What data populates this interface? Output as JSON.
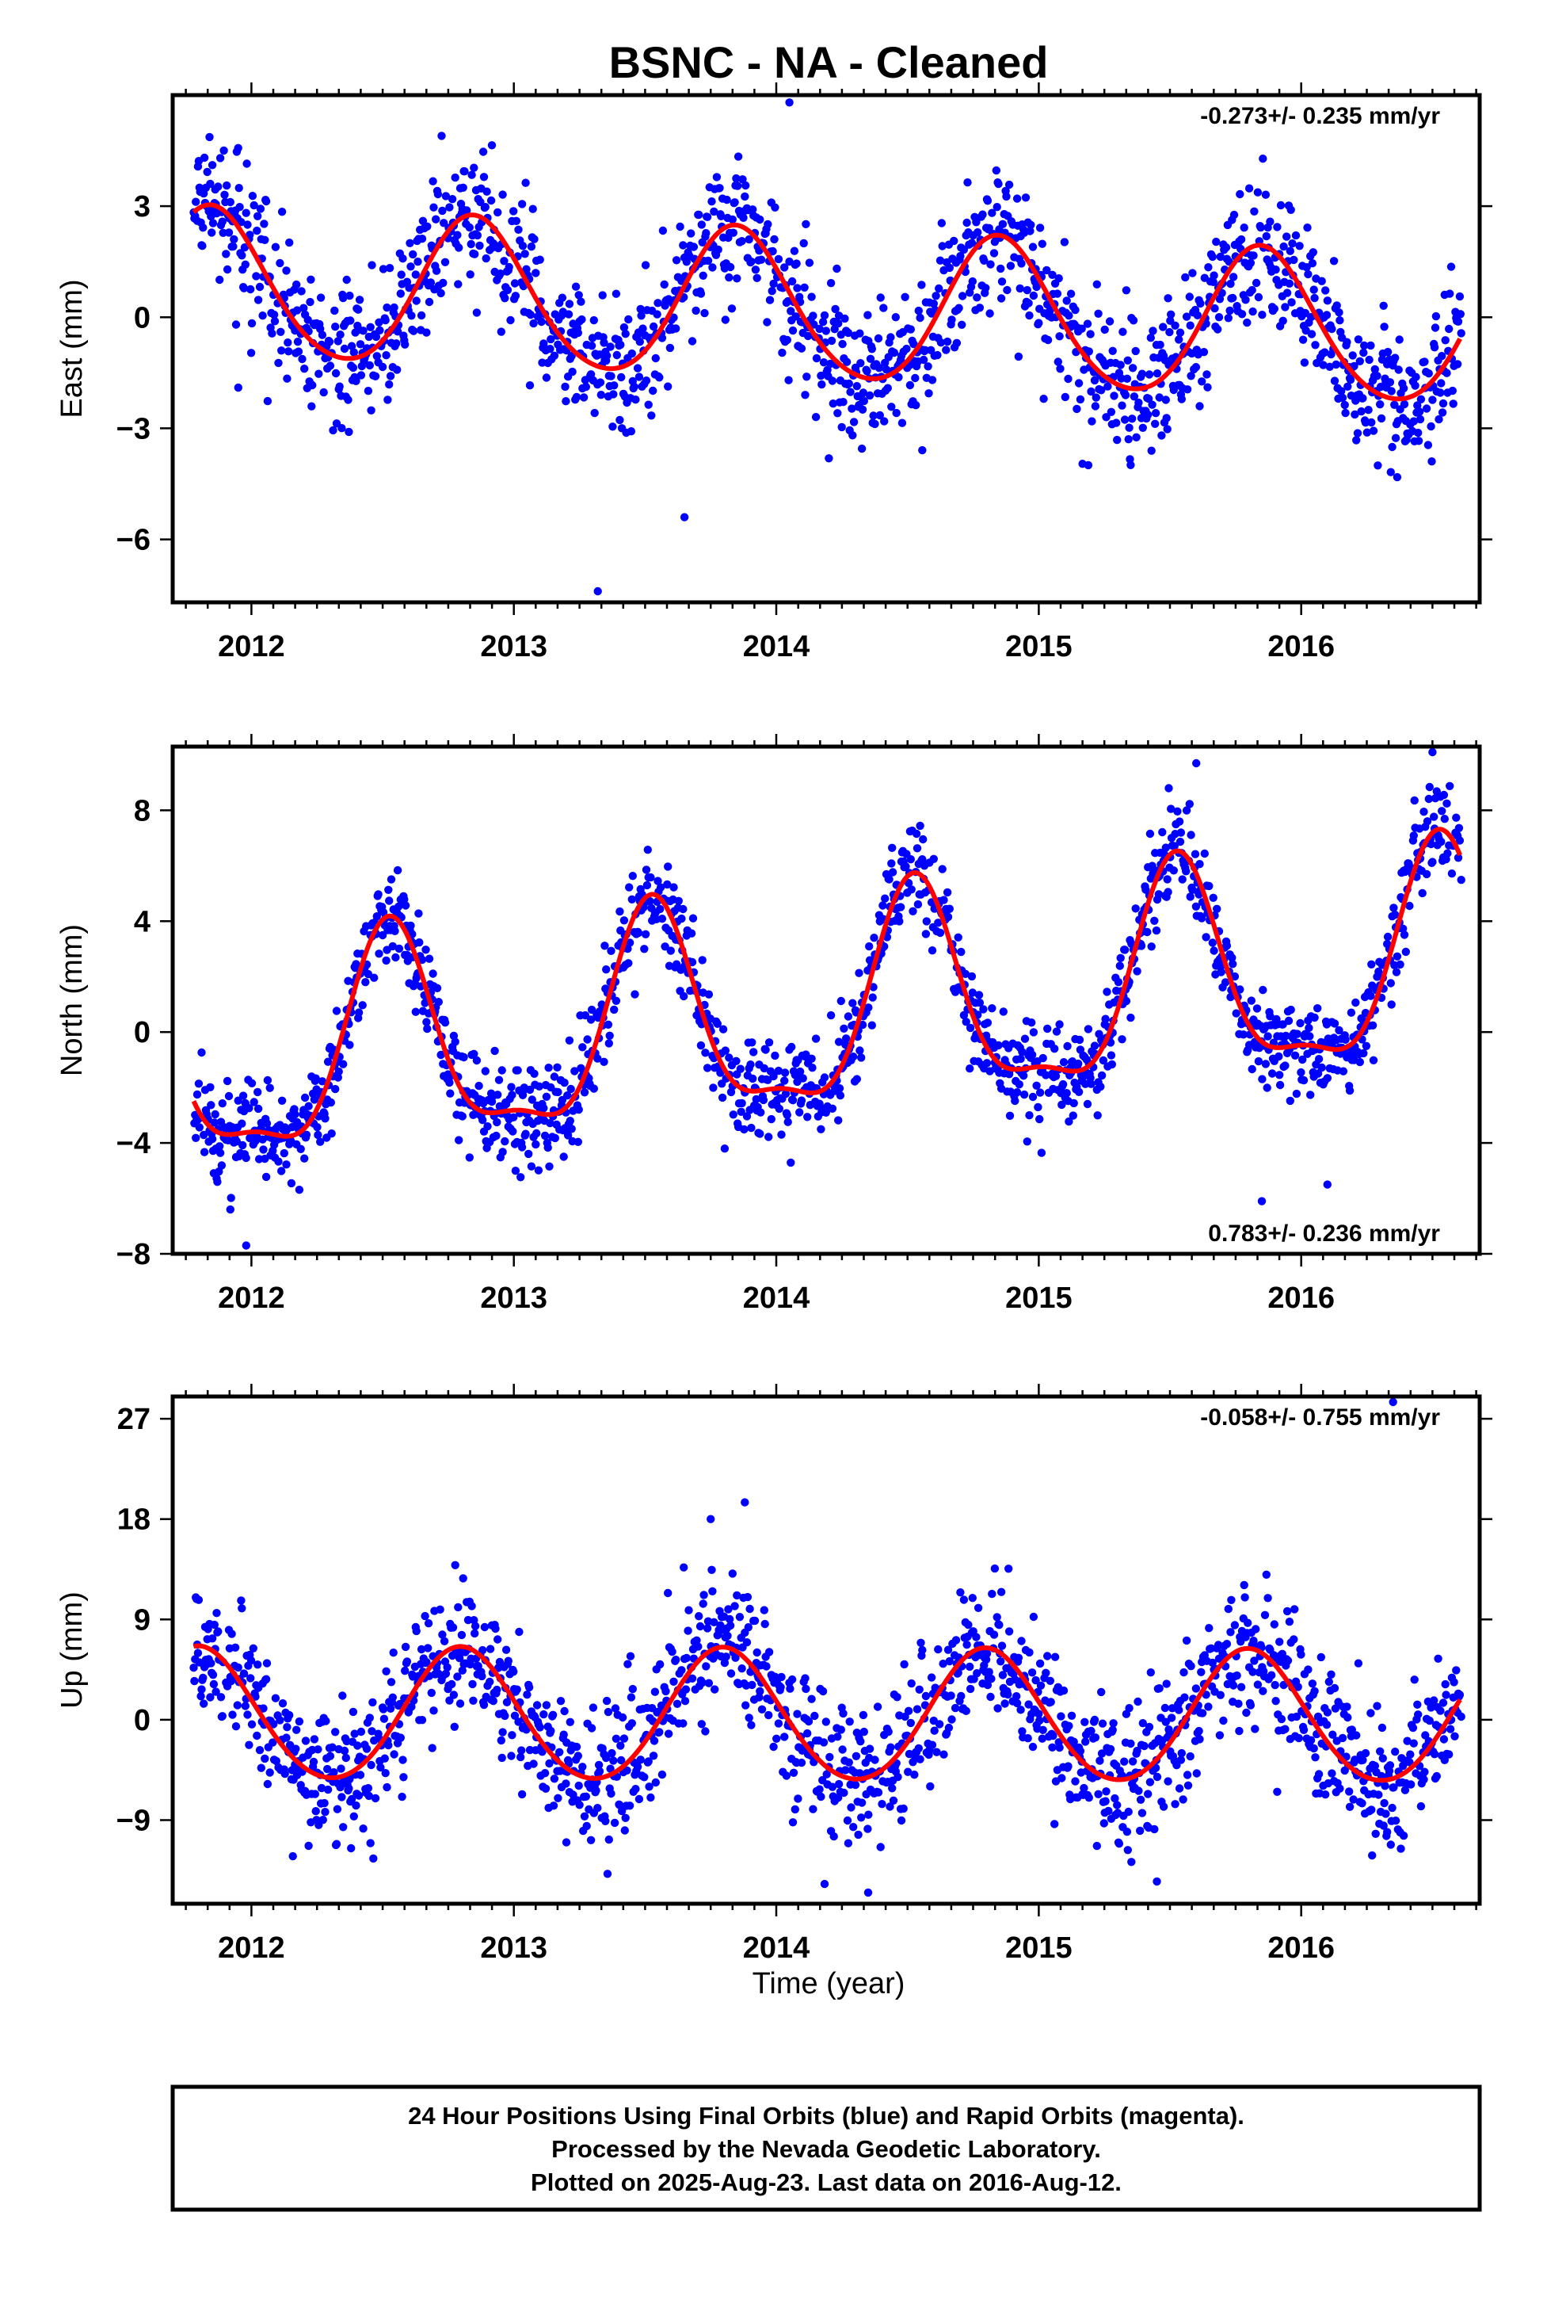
{
  "figure": {
    "title": "BSNC  - NA - Cleaned",
    "xlabel": "Time (year)",
    "footer": [
      "24 Hour Positions Using Final Orbits (blue) and Rapid Orbits (magenta).",
      "Processed by the Nevada Geodetic Laboratory.",
      "Plotted on 2025-Aug-23. Last data on 2016-Aug-12."
    ]
  },
  "colors": {
    "points": "#0000ff",
    "fit": "#ff0000",
    "frame": "#000000"
  },
  "chart_data": [
    {
      "type": "scatter",
      "ylabel": "East (mm)",
      "rate": "-0.273+/- 0.235 mm/yr",
      "xlim": [
        2011.7,
        2016.68
      ],
      "ylim": [
        -7.7,
        6.0
      ],
      "yticks": [
        -6,
        -3,
        0,
        3
      ],
      "ytick_labels": [
        "−6",
        "−3",
        "0",
        "3"
      ],
      "xticks": [
        2012,
        2013,
        2014,
        2015,
        2016
      ],
      "xtick_labels": [
        "2012",
        "2013",
        "2014",
        "2015",
        "2016"
      ],
      "grid": false,
      "fit_model": {
        "offset": 0.2,
        "trend": -0.273,
        "t0": 2014.2,
        "amp": 2.0,
        "peak": 2011.85,
        "amp2": 0.2,
        "phase2": 0.3
      },
      "scatter_model": {
        "sigma": 0.95,
        "outliers": [
          [
            2013.32,
            -7.4
          ],
          [
            2013.65,
            -5.4
          ],
          [
            2014.05,
            5.8
          ],
          [
            2011.95,
            -1.9
          ]
        ]
      },
      "series": [
        {
          "name": "Final Orbits",
          "color": "#0000ff"
        },
        {
          "name": "Rapid Orbits",
          "color": "#ff00ff"
        }
      ]
    },
    {
      "type": "scatter",
      "ylabel": "North (mm)",
      "rate": "0.783+/- 0.236 mm/yr",
      "xlim": [
        2011.7,
        2016.68
      ],
      "ylim": [
        -8.0,
        10.3
      ],
      "yticks": [
        -8,
        -4,
        0,
        4,
        8
      ],
      "ytick_labels": [
        "−8",
        "−4",
        "0",
        "4",
        "8"
      ],
      "xticks": [
        2012,
        2013,
        2014,
        2015,
        2016
      ],
      "xtick_labels": [
        "2012",
        "2013",
        "2014",
        "2015",
        "2016"
      ],
      "grid": false,
      "fit_model": {
        "offset": 0.6,
        "trend": 0.783,
        "t0": 2014.2,
        "amp": 3.7,
        "peak": 2011.53,
        "amp2": 1.2,
        "phase2": 0.1
      },
      "scatter_model": {
        "sigma": 0.9,
        "outliers": [
          [
            2015.85,
            -6.1
          ],
          [
            2016.1,
            -5.5
          ],
          [
            2015.6,
            9.7
          ],
          [
            2016.5,
            10.1
          ],
          [
            2011.98,
            -7.7
          ]
        ]
      }
    },
    {
      "type": "scatter",
      "ylabel": "Up (mm)",
      "rate": "-0.058+/- 0.755 mm/yr",
      "xlim": [
        2011.7,
        2016.68
      ],
      "ylim": [
        -16.5,
        29.0
      ],
      "yticks": [
        -9,
        0,
        9,
        18,
        27
      ],
      "ytick_labels": [
        "−9",
        "0",
        "9",
        "18",
        "27"
      ],
      "xticks": [
        2012,
        2013,
        2014,
        2015,
        2016
      ],
      "xtick_labels": [
        "2012",
        "2013",
        "2014",
        "2015",
        "2016"
      ],
      "grid": false,
      "fit_model": {
        "offset": 0.2,
        "trend": -0.058,
        "t0": 2014.2,
        "amp": 5.9,
        "peak": 2011.8,
        "amp2": 0.4,
        "phase2": 0.2
      },
      "scatter_model": {
        "sigma": 3.1,
        "outliers": [
          [
            2013.75,
            18.0
          ],
          [
            2013.88,
            19.5
          ],
          [
            2016.35,
            28.5
          ],
          [
            2015.45,
            -14.5
          ],
          [
            2014.35,
            -15.5
          ],
          [
            2013.2,
            -11.0
          ]
        ]
      }
    }
  ]
}
